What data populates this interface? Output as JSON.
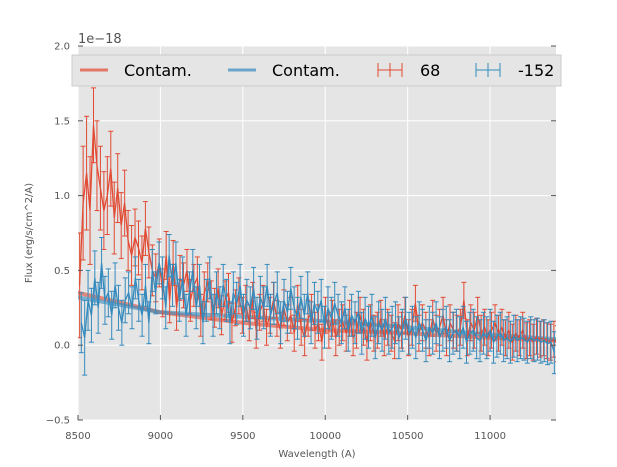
{
  "chart_data": {
    "type": "line",
    "title": "",
    "xlabel": "Wavelength (A)",
    "ylabel": "Flux (erg/s/cm^2/A)",
    "y_offset_label": "1e−18",
    "xlim": [
      8500,
      11400
    ],
    "ylim": [
      -0.5,
      2.0
    ],
    "x_ticks": [
      8500,
      9000,
      9500,
      10000,
      10500,
      11000
    ],
    "x_tick_labels": [
      "8500",
      "9000",
      "9500",
      "10000",
      "10500",
      "11000"
    ],
    "y_ticks": [
      -0.5,
      0.0,
      0.5,
      1.0,
      1.5,
      2.0
    ],
    "y_tick_labels": [
      "−0.5",
      "0.0",
      "0.5",
      "1.0",
      "1.5",
      "2.0"
    ],
    "grid": true,
    "legend_position": "top",
    "colors": {
      "background": "#e5e5e5",
      "red": "#e24a33",
      "blue": "#348abd"
    },
    "series": [
      {
        "name": "68",
        "kind": "errorbar",
        "color": "#e24a33",
        "x_start": 8510,
        "x_step": 21,
        "values": [
          0.4,
          0.95,
          1.15,
          0.9,
          1.47,
          1.2,
          1.05,
          0.9,
          1.0,
          1.18,
          0.85,
          1.05,
          0.8,
          0.95,
          0.7,
          0.6,
          0.72,
          0.65,
          0.55,
          0.78,
          0.62,
          0.5,
          0.45,
          0.55,
          0.35,
          0.6,
          0.3,
          0.55,
          0.25,
          0.45,
          0.4,
          0.5,
          0.3,
          0.4,
          0.45,
          0.2,
          0.35,
          0.42,
          0.3,
          0.25,
          0.38,
          0.2,
          0.3,
          0.35,
          0.15,
          0.25,
          0.33,
          0.2,
          0.28,
          0.15,
          0.3,
          0.1,
          0.22,
          0.28,
          0.12,
          0.2,
          0.3,
          0.18,
          0.1,
          0.25,
          0.15,
          0.2,
          0.08,
          0.28,
          0.12,
          0.05,
          0.18,
          0.22,
          0.1,
          0.15,
          0.02,
          0.2,
          0.1,
          0.18,
          0.05,
          0.12,
          0.15,
          0.08,
          0.18,
          0.05,
          0.1,
          0.2,
          0.12,
          0.02,
          0.15,
          0.08,
          0.1,
          0.18,
          0.05,
          0.12,
          0.08,
          0.03,
          0.15,
          0.1,
          0.2,
          0.05,
          0.12,
          0.28,
          0.08,
          0.15,
          0.1,
          0.05,
          0.18,
          0.08,
          0.12,
          0.2,
          0.05,
          0.15,
          0.1,
          0.08,
          0.12,
          0.3,
          0.05,
          0.15,
          0.1,
          0.2,
          0.08,
          0.12,
          0.05,
          0.1,
          0.15,
          0.08,
          0.12,
          0.05,
          0.1,
          0.02,
          0.08,
          0.05,
          0.1,
          0.03,
          0.05,
          0.02,
          0.06,
          0.04,
          0.05,
          0.03,
          0.02,
          0.04,
          0.01
        ],
        "errors": [
          0.35,
          0.38,
          0.38,
          0.36,
          0.25,
          0.3,
          0.28,
          0.26,
          0.26,
          0.25,
          0.24,
          0.23,
          0.22,
          0.22,
          0.2,
          0.2,
          0.19,
          0.18,
          0.18,
          0.18,
          0.17,
          0.17,
          0.16,
          0.16,
          0.16,
          0.16,
          0.15,
          0.15,
          0.15,
          0.15,
          0.15,
          0.14,
          0.14,
          0.14,
          0.14,
          0.14,
          0.14,
          0.13,
          0.13,
          0.13,
          0.13,
          0.13,
          0.13,
          0.13,
          0.13,
          0.12,
          0.12,
          0.12,
          0.12,
          0.12,
          0.12,
          0.12,
          0.12,
          0.12,
          0.12,
          0.12,
          0.12,
          0.12,
          0.12,
          0.12,
          0.12,
          0.12,
          0.12,
          0.12,
          0.12,
          0.12,
          0.12,
          0.12,
          0.12,
          0.12,
          0.12,
          0.12,
          0.12,
          0.12,
          0.12,
          0.12,
          0.12,
          0.12,
          0.12,
          0.12,
          0.12,
          0.12,
          0.12,
          0.12,
          0.12,
          0.12,
          0.12,
          0.12,
          0.12,
          0.12,
          0.12,
          0.12,
          0.12,
          0.12,
          0.12,
          0.12,
          0.12,
          0.12,
          0.12,
          0.12,
          0.12,
          0.12,
          0.12,
          0.12,
          0.12,
          0.12,
          0.12,
          0.12,
          0.12,
          0.12,
          0.12,
          0.12,
          0.12,
          0.12,
          0.12,
          0.12,
          0.12,
          0.12,
          0.12,
          0.12,
          0.12,
          0.12,
          0.12,
          0.12,
          0.12,
          0.12,
          0.12,
          0.12,
          0.12,
          0.12,
          0.12,
          0.12,
          0.12,
          0.12,
          0.12,
          0.12,
          0.12,
          0.12,
          0.12
        ]
      },
      {
        "name": "-152",
        "kind": "errorbar",
        "color": "#348abd",
        "x_start": 8520,
        "x_step": 20.5,
        "values": [
          0.15,
          0.05,
          0.3,
          0.2,
          0.45,
          0.25,
          0.55,
          0.3,
          0.35,
          0.2,
          0.4,
          0.25,
          0.15,
          0.3,
          0.35,
          0.25,
          0.45,
          0.3,
          0.2,
          0.4,
          0.15,
          0.5,
          0.35,
          0.55,
          0.45,
          0.25,
          0.6,
          0.4,
          0.55,
          0.3,
          0.45,
          0.2,
          0.35,
          0.5,
          0.25,
          0.4,
          0.15,
          0.3,
          0.45,
          0.2,
          0.35,
          0.25,
          0.4,
          0.3,
          0.15,
          0.35,
          0.28,
          0.4,
          0.2,
          0.3,
          0.25,
          0.38,
          0.18,
          0.32,
          0.25,
          0.4,
          0.2,
          0.28,
          0.35,
          0.15,
          0.3,
          0.22,
          0.38,
          0.25,
          0.18,
          0.32,
          0.2,
          0.35,
          0.15,
          0.28,
          0.22,
          0.3,
          0.12,
          0.25,
          0.18,
          0.28,
          0.2,
          0.15,
          0.25,
          0.1,
          0.2,
          0.15,
          0.22,
          0.08,
          0.18,
          0.12,
          0.2,
          0.05,
          0.15,
          0.1,
          0.18,
          0.08,
          0.12,
          0.15,
          0.05,
          0.1,
          0.18,
          0.08,
          0.12,
          0.05,
          0.15,
          0.1,
          0.03,
          0.12,
          0.08,
          0.15,
          0.05,
          0.1,
          0.12,
          0.03,
          0.08,
          0.1,
          0.05,
          0.12,
          0.02,
          0.08,
          0.1,
          0.05,
          0.03,
          0.08,
          0.05,
          0.1,
          0.02,
          0.06,
          0.08,
          0.03,
          0.05,
          0.02,
          0.06,
          0.03,
          0.05,
          0.04,
          0.02,
          0.05,
          0.03,
          0.04,
          0.02,
          0.03,
          0.01,
          0.02,
          -0.05
        ],
        "errors": [
          0.2,
          0.25,
          0.2,
          0.18,
          0.18,
          0.17,
          0.17,
          0.16,
          0.16,
          0.16,
          0.15,
          0.15,
          0.15,
          0.15,
          0.14,
          0.14,
          0.14,
          0.14,
          0.14,
          0.14,
          0.14,
          0.14,
          0.14,
          0.14,
          0.14,
          0.14,
          0.14,
          0.14,
          0.14,
          0.14,
          0.14,
          0.14,
          0.14,
          0.14,
          0.14,
          0.14,
          0.14,
          0.14,
          0.14,
          0.14,
          0.14,
          0.14,
          0.14,
          0.14,
          0.14,
          0.14,
          0.14,
          0.14,
          0.14,
          0.14,
          0.14,
          0.14,
          0.14,
          0.14,
          0.14,
          0.14,
          0.14,
          0.14,
          0.14,
          0.14,
          0.14,
          0.14,
          0.14,
          0.14,
          0.14,
          0.14,
          0.14,
          0.14,
          0.14,
          0.14,
          0.14,
          0.14,
          0.14,
          0.14,
          0.14,
          0.14,
          0.14,
          0.14,
          0.14,
          0.14,
          0.14,
          0.14,
          0.14,
          0.14,
          0.14,
          0.14,
          0.14,
          0.14,
          0.14,
          0.14,
          0.14,
          0.14,
          0.14,
          0.14,
          0.14,
          0.14,
          0.14,
          0.14,
          0.14,
          0.14,
          0.14,
          0.14,
          0.14,
          0.14,
          0.14,
          0.14,
          0.14,
          0.14,
          0.14,
          0.14,
          0.14,
          0.14,
          0.14,
          0.14,
          0.14,
          0.14,
          0.14,
          0.14,
          0.14,
          0.14,
          0.14,
          0.14,
          0.14,
          0.14,
          0.14,
          0.14,
          0.14,
          0.14,
          0.14,
          0.14,
          0.14,
          0.14,
          0.14,
          0.14,
          0.14,
          0.14,
          0.14,
          0.14,
          0.14,
          0.14,
          0.14
        ]
      },
      {
        "name": "Contam.",
        "kind": "line",
        "color": "#e24a33",
        "x": [
          8500,
          8700,
          9000,
          9500,
          10000,
          10500,
          11000,
          11400
        ],
        "values": [
          0.35,
          0.3,
          0.22,
          0.15,
          0.1,
          0.08,
          0.05,
          0.03
        ]
      },
      {
        "name": "Contam.",
        "kind": "line",
        "color": "#348abd",
        "x": [
          8500,
          8700,
          9000,
          9500,
          10000,
          10500,
          11000,
          11400
        ],
        "values": [
          0.32,
          0.28,
          0.22,
          0.19,
          0.16,
          0.12,
          0.07,
          0.04
        ]
      }
    ],
    "legend": [
      {
        "label": "Contam.",
        "color": "#e24a33",
        "marker": "line"
      },
      {
        "label": "Contam.",
        "color": "#348abd",
        "marker": "line"
      },
      {
        "label": "68",
        "color": "#e24a33",
        "marker": "errorbar"
      },
      {
        "label": "-152",
        "color": "#348abd",
        "marker": "errorbar"
      }
    ]
  }
}
